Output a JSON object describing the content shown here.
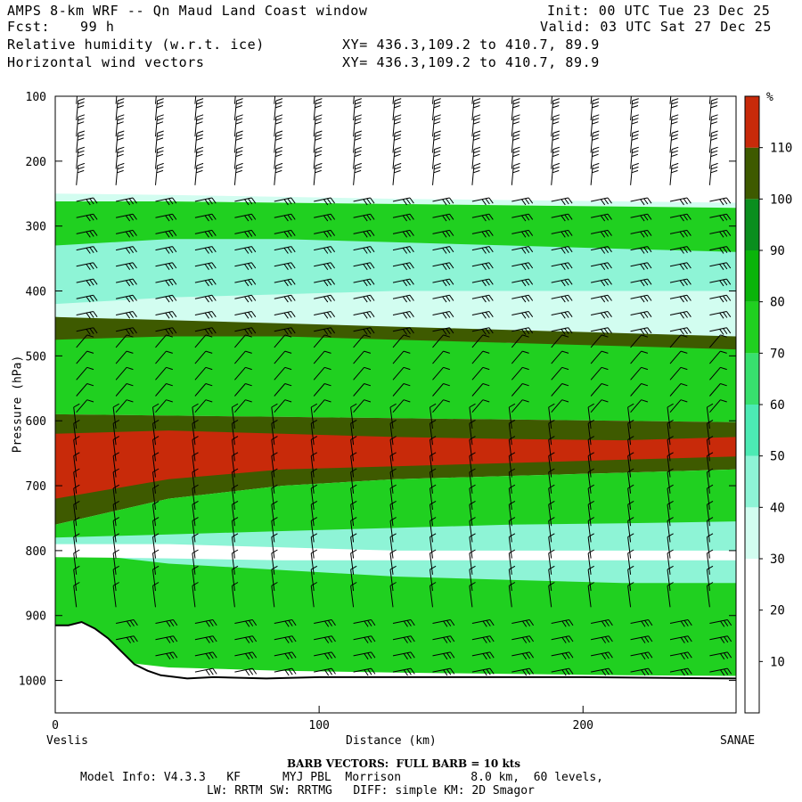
{
  "header": {
    "title": "AMPS 8-km WRF -- Qn Maud Land Coast window",
    "forecast_label": "Fcst:",
    "forecast_value": "99 h",
    "field1": "Relative humidity (w.r.t. ice)",
    "field2": "Horizontal wind vectors",
    "init": "Init: 00 UTC Tue 23 Dec 25",
    "valid": "Valid: 03 UTC Sat 27 Dec 25",
    "xy1": "XY= 436.3,109.2 to 410.7, 89.9",
    "xy2": "XY= 436.3,109.2 to 410.7, 89.9"
  },
  "chart_data": {
    "type": "heatmap",
    "ylabel": "Pressure (hPa)",
    "xlabel": "Distance (km)",
    "x_left_label": "Veslis",
    "x_right_label": "SANAE",
    "xlim": [
      0,
      258
    ],
    "ylim": [
      1050,
      100
    ],
    "x_ticks": [
      0,
      100,
      200
    ],
    "y_ticks": [
      100,
      200,
      300,
      400,
      500,
      600,
      700,
      800,
      900,
      1000
    ],
    "colorbar": {
      "unit": "%",
      "levels": [
        10,
        20,
        30,
        40,
        50,
        60,
        70,
        80,
        90,
        100,
        110
      ],
      "colors": [
        "#ffffff",
        "#ffffff",
        "#ffffff",
        "#d2fdf0",
        "#8ef4d6",
        "#4ceab4",
        "#38e06e",
        "#20d020",
        "#0ab40a",
        "#0a8e1e",
        "#3e5a00",
        "#c82a0a"
      ]
    },
    "rh_bands": [
      {
        "rh": 30,
        "top": [
          250,
          252,
          255,
          258,
          260,
          262,
          264
        ],
        "bottom": [
          262,
          262,
          264,
          266,
          268,
          270,
          272
        ]
      },
      {
        "rh": 75,
        "top": [
          262,
          262,
          264,
          266,
          268,
          270,
          272
        ],
        "bottom": [
          590,
          592,
          594,
          596,
          598,
          600,
          602
        ]
      },
      {
        "rh": 45,
        "top": [
          330,
          320,
          320,
          325,
          330,
          335,
          340
        ],
        "bottom": [
          430,
          440,
          450,
          460,
          470,
          470,
          470
        ]
      },
      {
        "rh": 30,
        "top": [
          420,
          410,
          405,
          400,
          400,
          400,
          400
        ],
        "bottom": [
          440,
          450,
          460,
          470,
          480,
          480,
          480
        ]
      },
      {
        "rh": 100,
        "top": [
          440,
          445,
          450,
          455,
          460,
          465,
          470
        ],
        "bottom": [
          475,
          470,
          470,
          475,
          480,
          485,
          490
        ]
      },
      {
        "rh": 105,
        "top": [
          590,
          592,
          594,
          596,
          598,
          600,
          602
        ],
        "bottom": [
          760,
          720,
          700,
          690,
          685,
          680,
          675
        ]
      },
      {
        "rh": 115,
        "top": [
          620,
          615,
          620,
          625,
          628,
          630,
          625
        ],
        "bottom": [
          720,
          690,
          675,
          670,
          665,
          660,
          655
        ]
      },
      {
        "rh": 75,
        "top": [
          760,
          720,
          700,
          690,
          685,
          680,
          675
        ],
        "bottom": [
          960,
          980,
          985,
          988,
          990,
          992,
          993
        ]
      },
      {
        "rh": 40,
        "top": [
          780,
          775,
          770,
          765,
          760,
          758,
          755
        ],
        "bottom": [
          800,
          820,
          830,
          840,
          845,
          850,
          850
        ]
      },
      {
        "rh": 25,
        "top": [
          790,
          790,
          795,
          800,
          800,
          800,
          800
        ],
        "bottom": [
          810,
          812,
          815,
          815,
          815,
          815,
          815
        ]
      }
    ],
    "terrain": {
      "x": [
        0,
        5,
        10,
        15,
        20,
        25,
        30,
        35,
        40,
        50,
        60,
        80,
        100,
        150,
        200,
        258
      ],
      "p": [
        915,
        915,
        910,
        920,
        935,
        955,
        975,
        985,
        992,
        997,
        995,
        997,
        995,
        995,
        995,
        997
      ]
    },
    "wind_barbs": {
      "columns_x": [
        8,
        23,
        38,
        53,
        68,
        83,
        98,
        113,
        128,
        143,
        158,
        173,
        188,
        203,
        218,
        233,
        248
      ],
      "row_spacing_hpa": 25,
      "full_barb_kts": 10
    }
  },
  "footer": {
    "barb_note": "BARB VECTORS:  FULL BARB = 10 kts",
    "model_line1": "Model Info: V4.3.3   KF      MYJ PBL  Morrison          8.0 km,  60 levels,",
    "model_line2": "LW: RRTM SW: RRTMG   DIFF: simple KM: 2D Smagor"
  }
}
